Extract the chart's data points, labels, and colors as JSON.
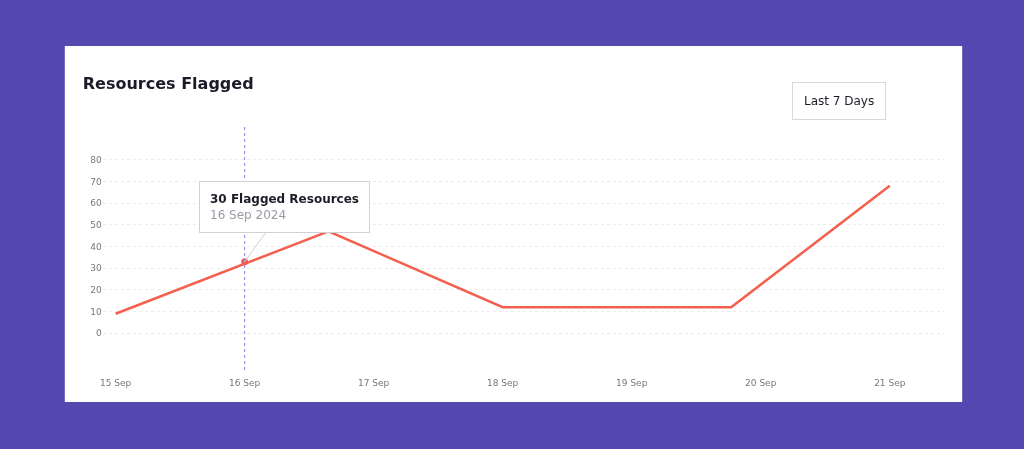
{
  "chart_data": {
    "type": "line",
    "title": "Resources Flagged",
    "x": [
      "2024-09-15",
      "2024-09-16T15:36",
      "2024-09-18",
      "2024-09-19T18:30",
      "2024-09-21"
    ],
    "series": [
      {
        "color": "#f4604f",
        "values": [
          9,
          47,
          12,
          12,
          68
        ]
      }
    ],
    "xlim": [
      "2024-09-14T21:36",
      "2024-09-21T10:19"
    ],
    "xticks": [
      {
        "value": "2024-09-15",
        "label": "15 Sep"
      },
      {
        "value": "2024-09-16",
        "label": "16 Sep"
      },
      {
        "value": "2024-09-17",
        "label": "17 Sep"
      },
      {
        "value": "2024-09-18",
        "label": "18 Sep"
      },
      {
        "value": "2024-09-19",
        "label": "19 Sep"
      },
      {
        "value": "2024-09-20",
        "label": "20 Sep"
      },
      {
        "value": "2024-09-21",
        "label": "21 Sep"
      }
    ],
    "ylim": [
      -16,
      96
    ],
    "yticks": [
      0,
      10,
      20,
      30,
      40,
      50,
      60,
      70,
      80
    ],
    "grid": "y",
    "marker": "none",
    "line_style": "solid",
    "ref_lines": [
      {
        "axis": "x",
        "value": "2024-09-16",
        "color": "#8a7fe0",
        "line_style": "dotted"
      }
    ],
    "annotations": [
      {
        "text": "30 Flagged Resources\n16 Sep 2024",
        "x": "2024-09-16",
        "y": 33
      },
      "Last 7 Days"
    ]
  }
}
